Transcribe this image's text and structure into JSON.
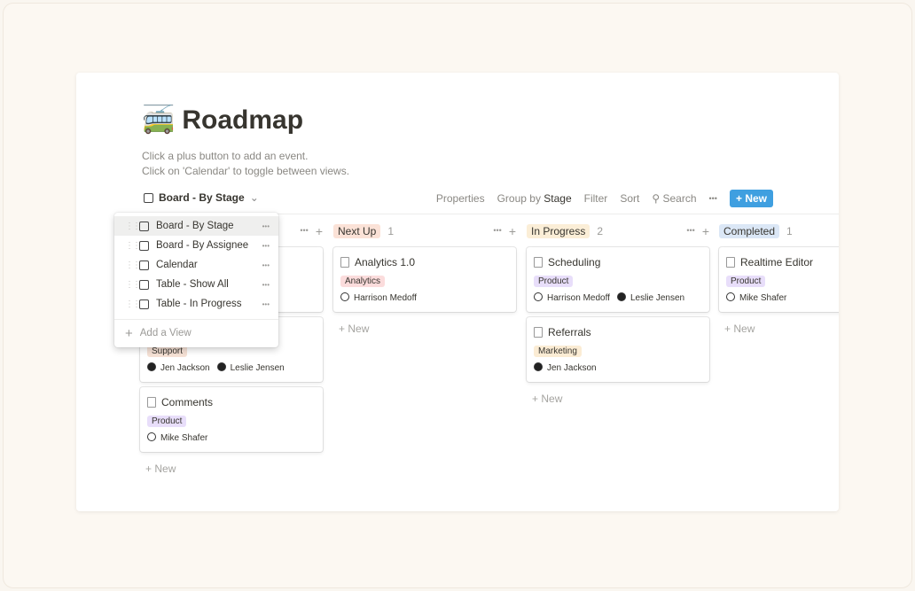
{
  "page": {
    "icon": "🚎",
    "title": "Roadmap",
    "description": [
      "Click a plus button to add an event.",
      "Click on 'Calendar' to toggle between views."
    ]
  },
  "view_selector": {
    "label": "Board - By Stage"
  },
  "toolbar": {
    "properties": "Properties",
    "group_by": "Group by",
    "group_value": "Stage",
    "filter": "Filter",
    "sort": "Sort",
    "search": "Search",
    "more": "•••",
    "new": "New"
  },
  "columns": [
    {
      "name": "",
      "count": "",
      "color": "#ffffff",
      "cards": [
        {
          "title": "",
          "tag": "",
          "tag_bg": "#fff",
          "people": []
        },
        {
          "title": "",
          "tag": "Support",
          "tag_bg": "#f6e1d6",
          "people": [
            "Jen Jackson",
            "Leslie Jensen"
          ]
        },
        {
          "title": "Comments",
          "tag": "Product",
          "tag_bg": "#e8defa",
          "people": [
            "Mike Shafer"
          ]
        }
      ]
    },
    {
      "name": "Next Up",
      "count": "1",
      "color": "#fbe2d7",
      "cards": [
        {
          "title": "Analytics 1.0",
          "tag": "Analytics",
          "tag_bg": "#fbdcdc",
          "people": [
            "Harrison Medoff"
          ]
        }
      ]
    },
    {
      "name": "In Progress",
      "count": "2",
      "color": "#fbeed7",
      "cards": [
        {
          "title": "Scheduling",
          "tag": "Product",
          "tag_bg": "#e8defa",
          "people": [
            "Harrison Medoff",
            "Leslie Jensen"
          ]
        },
        {
          "title": "Referrals",
          "tag": "Marketing",
          "tag_bg": "#fbecd4",
          "people": [
            "Jen Jackson"
          ]
        }
      ]
    },
    {
      "name": "Completed",
      "count": "1",
      "color": "#dbe7f6",
      "cards": [
        {
          "title": "Realtime Editor",
          "tag": "Product",
          "tag_bg": "#e8defa",
          "people": [
            "Mike Shafer"
          ]
        }
      ]
    }
  ],
  "new_label": "New",
  "menu": {
    "items": [
      "Board - By Stage",
      "Board - By Assignee",
      "Calendar",
      "Table - Show All",
      "Table - In Progress"
    ],
    "add": "Add a View"
  },
  "colors": {
    "accent": "#3f9fe0"
  }
}
